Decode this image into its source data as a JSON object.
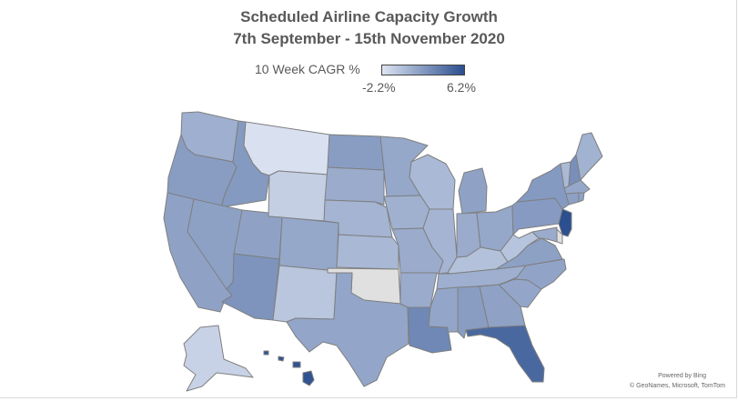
{
  "chart": {
    "title_line1": "Scheduled Airline Capacity Growth",
    "title_line2": "7th September - 15th November 2020"
  },
  "legend": {
    "label": "10 Week CAGR %",
    "min_label": "-2.2%",
    "max_label": "6.2%",
    "min_color": "#dde4f2",
    "max_color": "#2c4f8f",
    "no_data_color": "#e0e0e0"
  },
  "credits": {
    "powered_by": "Powered by Bing",
    "copyright": "© GeoNames, Microsoft, TomTom"
  },
  "chart_data": {
    "type": "choropleth",
    "title": "Scheduled Airline Capacity Growth 7th September - 15th November 2020",
    "metric": "10 Week CAGR %",
    "range": [
      -2.2,
      6.2
    ],
    "states": [
      {
        "state": "WA",
        "value": 0.8
      },
      {
        "state": "OR",
        "value": 1.8
      },
      {
        "state": "CA",
        "value": 1.5
      },
      {
        "state": "ID",
        "value": 2.0
      },
      {
        "state": "NV",
        "value": 1.6
      },
      {
        "state": "MT",
        "value": -2.0
      },
      {
        "state": "WY",
        "value": -1.0
      },
      {
        "state": "UT",
        "value": 1.5
      },
      {
        "state": "AZ",
        "value": 2.3
      },
      {
        "state": "CO",
        "value": 1.2
      },
      {
        "state": "NM",
        "value": -0.5
      },
      {
        "state": "ND",
        "value": 1.8
      },
      {
        "state": "SD",
        "value": 1.0
      },
      {
        "state": "NE",
        "value": 0.5
      },
      {
        "state": "KS",
        "value": 0.3
      },
      {
        "state": "OK",
        "value": null
      },
      {
        "state": "TX",
        "value": 1.3
      },
      {
        "state": "MN",
        "value": 1.2
      },
      {
        "state": "IA",
        "value": 0.7
      },
      {
        "state": "MO",
        "value": 1.0
      },
      {
        "state": "AR",
        "value": 1.0
      },
      {
        "state": "LA",
        "value": 3.0
      },
      {
        "state": "WI",
        "value": 0.2
      },
      {
        "state": "IL",
        "value": 0.5
      },
      {
        "state": "MI",
        "value": 1.5
      },
      {
        "state": "IN",
        "value": 1.0
      },
      {
        "state": "OH",
        "value": 1.2
      },
      {
        "state": "KY",
        "value": -0.2
      },
      {
        "state": "TN",
        "value": 0.8
      },
      {
        "state": "MS",
        "value": 1.3
      },
      {
        "state": "AL",
        "value": 1.8
      },
      {
        "state": "GA",
        "value": 1.5
      },
      {
        "state": "FL",
        "value": 4.8
      },
      {
        "state": "SC",
        "value": 1.3
      },
      {
        "state": "NC",
        "value": 1.4
      },
      {
        "state": "VA",
        "value": 1.6
      },
      {
        "state": "WV",
        "value": -0.4
      },
      {
        "state": "PA",
        "value": 1.9
      },
      {
        "state": "NY",
        "value": 2.0
      },
      {
        "state": "NJ",
        "value": 6.2
      },
      {
        "state": "DE",
        "value": null
      },
      {
        "state": "MD",
        "value": 1.0
      },
      {
        "state": "VT",
        "value": 0.2
      },
      {
        "state": "NH",
        "value": 2.6
      },
      {
        "state": "ME",
        "value": 0.6
      },
      {
        "state": "MA",
        "value": 1.2
      },
      {
        "state": "CT",
        "value": 1.6
      },
      {
        "state": "RI",
        "value": 1.5
      },
      {
        "state": "AK",
        "value": -1.2
      },
      {
        "state": "HI",
        "value": 6.0
      }
    ]
  }
}
